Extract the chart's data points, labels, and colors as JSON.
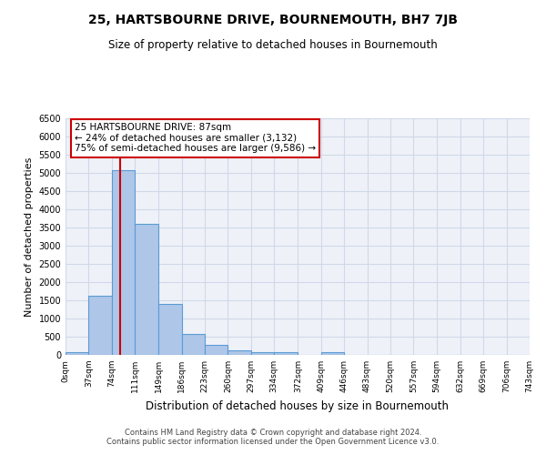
{
  "title": "25, HARTSBOURNE DRIVE, BOURNEMOUTH, BH7 7JB",
  "subtitle": "Size of property relative to detached houses in Bournemouth",
  "xlabel": "Distribution of detached houses by size in Bournemouth",
  "ylabel": "Number of detached properties",
  "footer_line1": "Contains HM Land Registry data © Crown copyright and database right 2024.",
  "footer_line2": "Contains public sector information licensed under the Open Government Licence v3.0.",
  "bin_edges": [
    0,
    37,
    74,
    111,
    149,
    186,
    223,
    260,
    297,
    334,
    372,
    409,
    446,
    483,
    520,
    557,
    594,
    632,
    669,
    706,
    743
  ],
  "bar_heights": [
    75,
    1625,
    5075,
    3600,
    1400,
    575,
    275,
    125,
    75,
    75,
    0,
    75,
    0,
    0,
    0,
    0,
    0,
    0,
    0,
    0
  ],
  "bar_color": "#aec6e8",
  "bar_edge_color": "#5b9bd5",
  "grid_color": "#d0d8e8",
  "background_color": "#eef2f8",
  "property_size": 87,
  "vline_color": "#cc0000",
  "annotation_text_line1": "25 HARTSBOURNE DRIVE: 87sqm",
  "annotation_text_line2": "← 24% of detached houses are smaller (3,132)",
  "annotation_text_line3": "75% of semi-detached houses are larger (9,586) →",
  "annotation_box_color": "#cc0000",
  "ylim": [
    0,
    6500
  ],
  "yticks": [
    0,
    500,
    1000,
    1500,
    2000,
    2500,
    3000,
    3500,
    4000,
    4500,
    5000,
    5500,
    6000,
    6500
  ]
}
